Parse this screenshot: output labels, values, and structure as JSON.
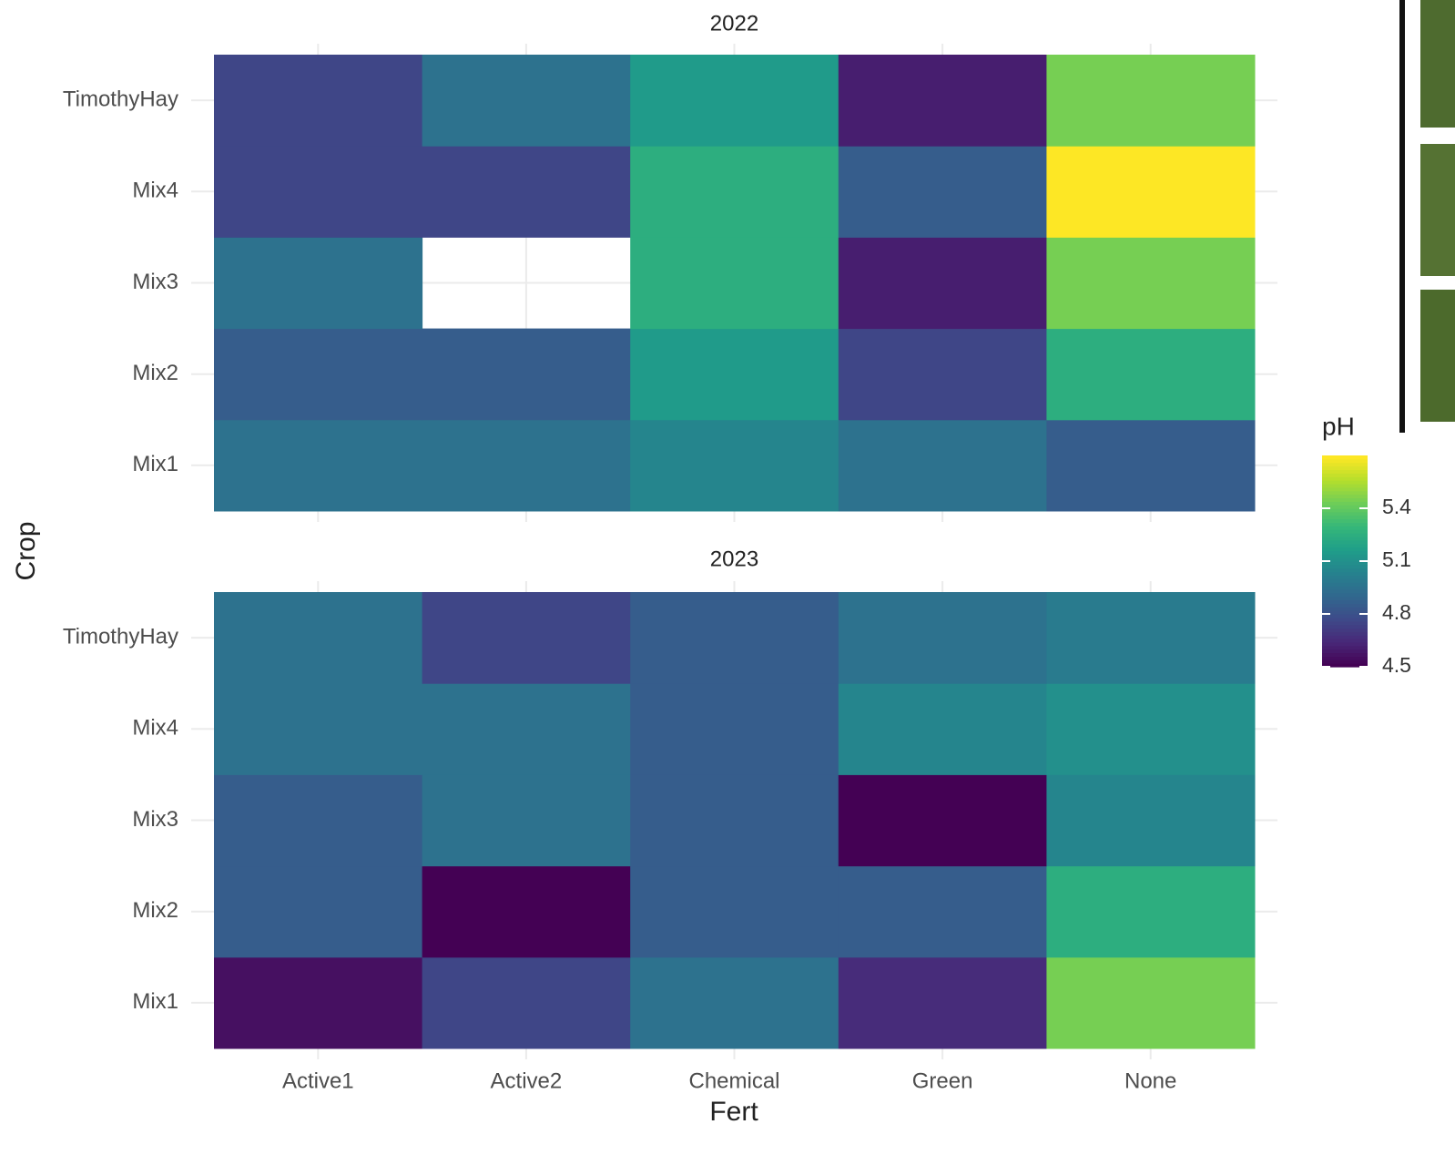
{
  "chart_data": {
    "type": "heatmap",
    "x_label": "Fert",
    "y_label": "Crop",
    "colormap": "viridis",
    "x_categories": [
      "Active1",
      "Active2",
      "Chemical",
      "Green",
      "None"
    ],
    "y_categories": [
      "Mix1",
      "Mix2",
      "Mix3",
      "Mix4",
      "TimothyHay"
    ],
    "facets": [
      {
        "title": "2022",
        "values": [
          [
            4.95,
            4.95,
            5.05,
            4.95,
            4.85
          ],
          [
            4.85,
            4.85,
            5.15,
            4.75,
            5.25
          ],
          [
            4.95,
            null,
            5.25,
            4.6,
            5.45
          ],
          [
            4.75,
            4.75,
            5.25,
            4.85,
            5.7
          ],
          [
            4.75,
            4.95,
            5.15,
            4.6,
            5.45
          ]
        ]
      },
      {
        "title": "2023",
        "values": [
          [
            4.55,
            4.75,
            4.95,
            4.65,
            5.45
          ],
          [
            4.85,
            4.5,
            4.85,
            4.85,
            5.25
          ],
          [
            4.85,
            4.95,
            4.85,
            4.5,
            5.05
          ],
          [
            4.95,
            4.95,
            4.85,
            5.05,
            5.1
          ],
          [
            4.95,
            4.75,
            4.85,
            4.95,
            5.0
          ]
        ]
      }
    ],
    "colorbar": {
      "title": "pH",
      "lim": [
        4.5,
        5.7
      ],
      "ticks": [
        4.5,
        4.8,
        5.1,
        5.4
      ]
    }
  }
}
